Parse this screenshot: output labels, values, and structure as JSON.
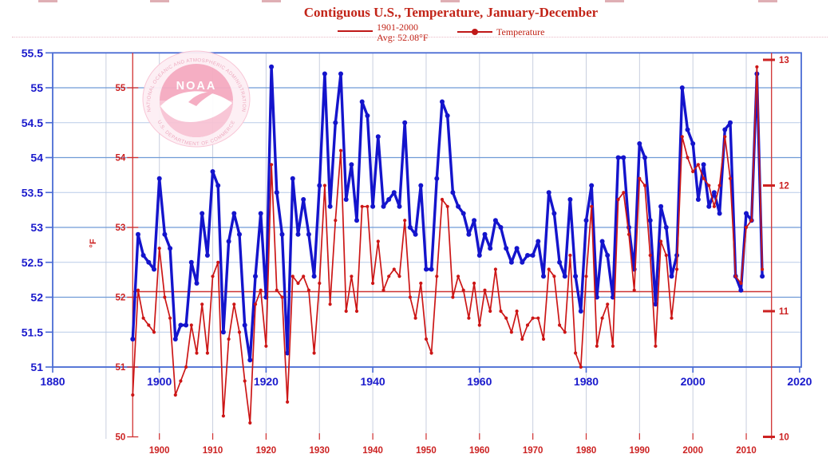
{
  "title": "Contiguous U.S., Temperature, January-December",
  "legend": {
    "avg_label_line1": "1901-2000",
    "avg_label_line2": "Avg: 52.08°F",
    "series_label": "Temperature"
  },
  "logo": {
    "acronym": "NOAA",
    "ring_top": "NATIONAL OCEANIC AND ATMOSPHERIC ADMINISTRATION",
    "ring_bottom": "U.S. DEPARTMENT OF COMMERCE"
  },
  "colors": {
    "title_red": "#c22418",
    "blue_series": "#1414cc",
    "red_series": "#cc1616",
    "blue_label": "#1a1acc",
    "red_label": "#cc2222",
    "grid_major": "#6f9bd6",
    "grid_minor": "#b8cbe8",
    "grid_decade": "#c9cfdf",
    "frame_blue": "#4a6cd4",
    "red_axis": "#d03030",
    "avg_line": "#cc3333",
    "logo_pink_dark": "#f5aac0",
    "logo_pink_mid": "#f8c3d4",
    "logo_pink_light": "#fdeff4",
    "logo_ring_text": "#eda6bc"
  },
  "chart_data": {
    "type": "line",
    "title": "Contiguous U.S., Temperature, January-December",
    "x_years": [
      1895,
      1896,
      1897,
      1898,
      1899,
      1900,
      1901,
      1902,
      1903,
      1904,
      1905,
      1906,
      1907,
      1908,
      1909,
      1910,
      1911,
      1912,
      1913,
      1914,
      1915,
      1916,
      1917,
      1918,
      1919,
      1920,
      1921,
      1922,
      1923,
      1924,
      1925,
      1926,
      1927,
      1928,
      1929,
      1930,
      1931,
      1932,
      1933,
      1934,
      1935,
      1936,
      1937,
      1938,
      1939,
      1940,
      1941,
      1942,
      1943,
      1944,
      1945,
      1946,
      1947,
      1948,
      1949,
      1950,
      1951,
      1952,
      1953,
      1954,
      1955,
      1956,
      1957,
      1958,
      1959,
      1960,
      1961,
      1962,
      1963,
      1964,
      1965,
      1966,
      1967,
      1968,
      1969,
      1970,
      1971,
      1972,
      1973,
      1974,
      1975,
      1976,
      1977,
      1978,
      1979,
      1980,
      1981,
      1982,
      1983,
      1984,
      1985,
      1986,
      1987,
      1988,
      1989,
      1990,
      1991,
      1992,
      1993,
      1994,
      1995,
      1996,
      1997,
      1998,
      1999,
      2000,
      2001,
      2002,
      2003,
      2004,
      2005,
      2006,
      2007,
      2008,
      2009,
      2010,
      2011,
      2012,
      2013
    ],
    "series": [
      {
        "name": "Temperature (blue curve, °F left axis)",
        "color": "#1414cc",
        "values": [
          51.4,
          52.9,
          52.6,
          52.5,
          52.4,
          53.7,
          52.9,
          52.7,
          51.4,
          51.6,
          51.6,
          52.5,
          52.2,
          53.2,
          52.6,
          53.8,
          53.6,
          51.5,
          52.8,
          53.2,
          52.9,
          51.6,
          51.1,
          52.3,
          53.2,
          52.0,
          55.3,
          53.5,
          52.9,
          51.2,
          53.7,
          52.9,
          53.4,
          52.9,
          52.3,
          53.6,
          55.2,
          53.3,
          54.5,
          55.2,
          53.4,
          53.9,
          53.1,
          54.8,
          54.6,
          53.3,
          54.3,
          53.3,
          53.4,
          53.5,
          53.3,
          54.5,
          53.0,
          52.9,
          53.6,
          52.4,
          52.4,
          53.7,
          54.8,
          54.6,
          53.5,
          53.3,
          53.2,
          52.9,
          53.1,
          52.6,
          52.9,
          52.7,
          53.1,
          53.0,
          52.7,
          52.5,
          52.7,
          52.5,
          52.6,
          52.6,
          52.8,
          52.3,
          53.5,
          53.2,
          52.5,
          52.3,
          53.4,
          52.3,
          51.8,
          53.1,
          53.6,
          52.0,
          52.8,
          52.6,
          52.0,
          54.0,
          54.0,
          53.0,
          52.4,
          54.2,
          54.0,
          53.1,
          51.9,
          53.3,
          53.0,
          52.3,
          52.6,
          55.0,
          54.4,
          54.2,
          53.4,
          53.9,
          53.3,
          53.5,
          53.2,
          54.4,
          54.5,
          52.3,
          52.1,
          53.2,
          53.1,
          55.2,
          52.3
        ]
      },
      {
        "name": "Temperature (red curve, °F inner axis / °C right axis)",
        "color": "#cc1616",
        "values": [
          50.6,
          52.1,
          51.7,
          51.6,
          51.5,
          52.7,
          52.0,
          51.7,
          50.6,
          50.8,
          51.0,
          51.6,
          51.2,
          51.9,
          51.2,
          52.3,
          52.5,
          50.3,
          51.4,
          51.9,
          51.5,
          50.8,
          50.2,
          51.9,
          52.1,
          51.3,
          53.9,
          52.1,
          52.0,
          50.5,
          52.3,
          52.2,
          52.3,
          52.1,
          51.2,
          52.2,
          53.6,
          51.9,
          53.1,
          54.1,
          51.8,
          52.3,
          51.8,
          53.3,
          53.3,
          52.2,
          52.8,
          52.1,
          52.3,
          52.4,
          52.3,
          53.1,
          52.0,
          51.7,
          52.2,
          51.4,
          51.2,
          52.3,
          53.4,
          53.3,
          52.0,
          52.3,
          52.1,
          51.7,
          52.2,
          51.6,
          52.1,
          51.8,
          52.4,
          51.8,
          51.7,
          51.5,
          51.8,
          51.4,
          51.6,
          51.7,
          51.7,
          51.4,
          52.4,
          52.3,
          51.6,
          51.5,
          52.6,
          51.2,
          51.0,
          52.3,
          53.3,
          51.3,
          51.7,
          51.9,
          51.3,
          53.4,
          53.5,
          52.9,
          52.1,
          53.7,
          53.6,
          52.6,
          51.3,
          52.8,
          52.6,
          51.7,
          52.4,
          54.3,
          54.0,
          53.8,
          53.9,
          53.7,
          53.6,
          53.3,
          53.6,
          54.3,
          53.7,
          52.3,
          52.2,
          53.0,
          53.1,
          55.3,
          52.4
        ]
      }
    ],
    "baseline": {
      "label": "1901-2000 Avg: 52.08°F",
      "value_f": 52.08
    },
    "axes": {
      "left_blue_f_ticks": [
        55.5,
        55,
        54.5,
        54,
        53.5,
        53,
        52.5,
        52,
        51.5,
        51
      ],
      "inner_red_f_ticks": [
        55,
        54,
        53,
        52,
        51,
        50
      ],
      "inner_red_f_axis_label": "°F",
      "right_red_c_ticks": [
        13,
        12,
        11,
        10
      ],
      "bottom_blue_year_ticks": [
        1880,
        1900,
        1920,
        1940,
        1960,
        1980,
        2000,
        2020
      ],
      "bottom_red_year_ticks": [
        1900,
        1910,
        1920,
        1930,
        1940,
        1950,
        1960,
        1970,
        1980,
        1990,
        2000,
        2010
      ],
      "blue_f_range": [
        51,
        55.5
      ],
      "red_f_range": [
        50,
        55.4
      ],
      "year_range": [
        1880,
        2020
      ],
      "grid": true,
      "legend_position": "top"
    }
  }
}
